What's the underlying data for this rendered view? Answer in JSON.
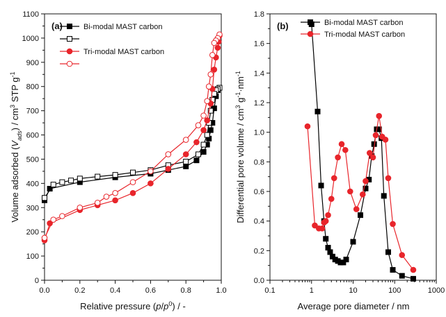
{
  "chart_data": [
    {
      "type": "line",
      "panel_label": "(a)",
      "xlabel": "Relative pressure (p/p⁰) / -",
      "ylabel": "Volume adsorbed (Vₐₔₛ) / cm³ STP g⁻¹",
      "xlim": [
        0,
        1.0
      ],
      "ylim": [
        0,
        1100
      ],
      "xticks": [
        "0.0",
        "0.2",
        "0.4",
        "0.6",
        "0.8",
        "1.0"
      ],
      "yticks": [
        "0",
        "100",
        "200",
        "300",
        "400",
        "500",
        "600",
        "700",
        "800",
        "900",
        "1000",
        "1100"
      ],
      "legend_position": "top-left",
      "series": [
        {
          "name": "Bi-modal MAST carbon",
          "color": "#000000",
          "marker": "square",
          "filled": true,
          "x": [
            0.0,
            0.03,
            0.2,
            0.4,
            0.6,
            0.7,
            0.8,
            0.86,
            0.9,
            0.92,
            0.93,
            0.94,
            0.95,
            0.96,
            0.97,
            0.98,
            0.99
          ],
          "y": [
            330,
            378,
            405,
            425,
            440,
            455,
            470,
            495,
            530,
            560,
            585,
            620,
            650,
            710,
            760,
            785,
            795
          ]
        },
        {
          "name": "",
          "color": "#000000",
          "marker": "square",
          "filled": false,
          "x": [
            0.99,
            0.98,
            0.97,
            0.96,
            0.95,
            0.94,
            0.93,
            0.92,
            0.9,
            0.87,
            0.8,
            0.7,
            0.6,
            0.5,
            0.4,
            0.3,
            0.2,
            0.15,
            0.1,
            0.05,
            0.0
          ],
          "y": [
            795,
            790,
            785,
            770,
            745,
            700,
            650,
            600,
            560,
            520,
            490,
            475,
            455,
            445,
            435,
            428,
            420,
            412,
            405,
            395,
            340
          ]
        },
        {
          "name": "Tri-modal MAST carbon",
          "color": "#e8252b",
          "marker": "circle",
          "filled": true,
          "x": [
            0.0,
            0.03,
            0.2,
            0.3,
            0.4,
            0.5,
            0.6,
            0.7,
            0.8,
            0.86,
            0.9,
            0.92,
            0.94,
            0.95,
            0.96,
            0.97,
            0.98,
            0.985,
            0.99
          ],
          "y": [
            165,
            235,
            290,
            310,
            330,
            360,
            400,
            460,
            520,
            570,
            620,
            660,
            730,
            790,
            870,
            920,
            960,
            985,
            1010
          ]
        },
        {
          "name": "",
          "color": "#e8252b",
          "marker": "circle",
          "filled": false,
          "x": [
            0.99,
            0.98,
            0.97,
            0.96,
            0.95,
            0.94,
            0.93,
            0.92,
            0.9,
            0.87,
            0.8,
            0.7,
            0.6,
            0.5,
            0.4,
            0.35,
            0.3,
            0.2,
            0.1,
            0.05,
            0.0
          ],
          "y": [
            1015,
            1000,
            990,
            980,
            930,
            850,
            800,
            740,
            680,
            640,
            580,
            520,
            450,
            405,
            360,
            345,
            320,
            300,
            265,
            250,
            175
          ]
        }
      ]
    },
    {
      "type": "line",
      "panel_label": "(b)",
      "xlabel": "Average pore diameter / nm",
      "ylabel": "Differential pore volume / cm³ g⁻¹·nm⁻¹",
      "xscale": "log",
      "xlim": [
        0.1,
        1000
      ],
      "ylim": [
        0,
        1.8
      ],
      "xticks": [
        "0.1",
        "1",
        "10",
        "100",
        "1000"
      ],
      "yticks": [
        "0.0",
        "0.2",
        "0.4",
        "0.6",
        "0.8",
        "1.0",
        "1.2",
        "1.4",
        "1.6",
        "1.8"
      ],
      "legend_position": "top-right",
      "series": [
        {
          "name": "Bi-modal MAST carbon",
          "color": "#000000",
          "marker": "square",
          "filled": true,
          "x": [
            1.0,
            1.4,
            1.7,
            2.0,
            2.2,
            2.5,
            2.8,
            3.2,
            3.7,
            4.3,
            5.0,
            5.8,
            6.8,
            10,
            15,
            20,
            24,
            28,
            32,
            37,
            42,
            48,
            55,
            70,
            90,
            150,
            280
          ],
          "y": [
            1.73,
            1.14,
            0.64,
            0.4,
            0.28,
            0.22,
            0.19,
            0.16,
            0.14,
            0.13,
            0.12,
            0.12,
            0.14,
            0.26,
            0.44,
            0.62,
            0.68,
            0.84,
            0.92,
            1.02,
            1.02,
            0.96,
            0.57,
            0.19,
            0.07,
            0.03,
            0.01
          ]
        },
        {
          "name": "Tri-modal MAST carbon",
          "color": "#e8252b",
          "marker": "circle",
          "filled": true,
          "x": [
            0.8,
            1.2,
            1.5,
            1.8,
            2.0,
            2.2,
            2.5,
            3.0,
            3.5,
            4.3,
            5.3,
            6.5,
            8.5,
            12,
            17,
            20,
            25,
            30,
            35,
            42,
            50,
            60,
            70,
            90,
            150,
            280
          ],
          "y": [
            1.04,
            0.37,
            0.35,
            0.35,
            0.39,
            0.4,
            0.44,
            0.55,
            0.69,
            0.83,
            0.92,
            0.88,
            0.6,
            0.48,
            0.58,
            0.67,
            0.86,
            0.83,
            0.98,
            1.11,
            0.97,
            0.95,
            0.69,
            0.38,
            0.17,
            0.07
          ]
        }
      ]
    }
  ]
}
